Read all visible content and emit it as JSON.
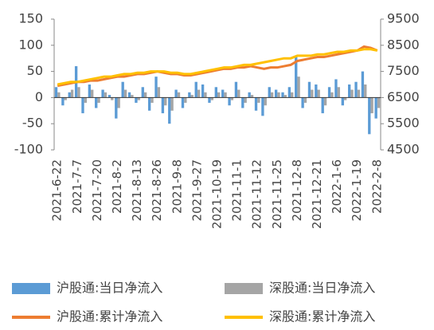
{
  "chart_data": {
    "type": "bar-line",
    "categories": [
      "2021-6-22",
      null,
      null,
      "2021-7-7",
      null,
      null,
      "2021-7-20",
      null,
      null,
      "2021-8-2",
      null,
      null,
      "2021-8-13",
      null,
      null,
      "2021-8-26",
      null,
      null,
      "2021-9-8",
      null,
      null,
      "2021-9-27",
      null,
      null,
      "2021-10-19",
      null,
      null,
      "2021-11-1",
      null,
      null,
      "2021-11-12",
      null,
      null,
      "2021-11-25",
      null,
      null,
      "2021-12-8",
      null,
      null,
      "2021-12-21",
      null,
      null,
      "2022-1-6",
      null,
      null,
      "2022-1-19",
      null,
      null,
      "2022-2-8"
    ],
    "series": [
      {
        "name": "沪股通:当日净流入",
        "type": "bar",
        "color": "#5b9bd5",
        "values": [
          20,
          -15,
          10,
          60,
          -30,
          25,
          -20,
          15,
          5,
          -40,
          30,
          10,
          -10,
          20,
          -25,
          40,
          -30,
          -50,
          15,
          -20,
          10,
          30,
          25,
          -10,
          20,
          15,
          -15,
          30,
          -20,
          10,
          -25,
          -35,
          20,
          15,
          10,
          20,
          80,
          -20,
          30,
          25,
          -30,
          20,
          35,
          -15,
          25,
          30,
          50,
          -70,
          -40
        ]
      },
      {
        "name": "深股通:当日净流入",
        "type": "bar",
        "color": "#a5a5a5",
        "values": [
          10,
          -5,
          15,
          20,
          -10,
          15,
          -10,
          10,
          -5,
          -20,
          15,
          5,
          -5,
          10,
          -10,
          20,
          -15,
          -25,
          10,
          -10,
          5,
          15,
          10,
          -5,
          10,
          10,
          -5,
          15,
          -10,
          5,
          -10,
          -15,
          10,
          10,
          5,
          10,
          40,
          -10,
          15,
          15,
          -15,
          10,
          20,
          -5,
          15,
          15,
          25,
          -30,
          -20
        ]
      },
      {
        "name": "沪股通:累计净流入",
        "type": "line",
        "axis": "y2",
        "color": "#ed7d31",
        "values": [
          6950,
          7000,
          7050,
          7100,
          7100,
          7150,
          7150,
          7200,
          7250,
          7300,
          7300,
          7350,
          7400,
          7400,
          7450,
          7500,
          7450,
          7400,
          7400,
          7350,
          7350,
          7400,
          7450,
          7500,
          7550,
          7600,
          7600,
          7650,
          7650,
          7700,
          7650,
          7600,
          7650,
          7650,
          7700,
          7750,
          7900,
          7950,
          8000,
          8050,
          8050,
          8100,
          8150,
          8200,
          8250,
          8300,
          8450,
          8400,
          8300
        ]
      },
      {
        "name": "深股通:累计净流入",
        "type": "line",
        "axis": "y2",
        "color": "#ffc000",
        "values": [
          7000,
          7050,
          7100,
          7100,
          7150,
          7200,
          7250,
          7300,
          7300,
          7350,
          7400,
          7400,
          7450,
          7450,
          7500,
          7500,
          7500,
          7450,
          7450,
          7400,
          7400,
          7450,
          7500,
          7550,
          7600,
          7650,
          7650,
          7700,
          7750,
          7750,
          7800,
          7850,
          7900,
          7950,
          8000,
          8000,
          8100,
          8100,
          8100,
          8150,
          8150,
          8200,
          8250,
          8250,
          8300,
          8300,
          8350,
          8350,
          8300
        ]
      }
    ],
    "ylim": [
      -100,
      150
    ],
    "yticks": [
      -100,
      -50,
      0,
      50,
      100,
      150
    ],
    "y2lim": [
      4500,
      9500
    ],
    "y2ticks": [
      4500,
      5500,
      6500,
      7500,
      8500,
      9500
    ],
    "legend": "bottom"
  }
}
